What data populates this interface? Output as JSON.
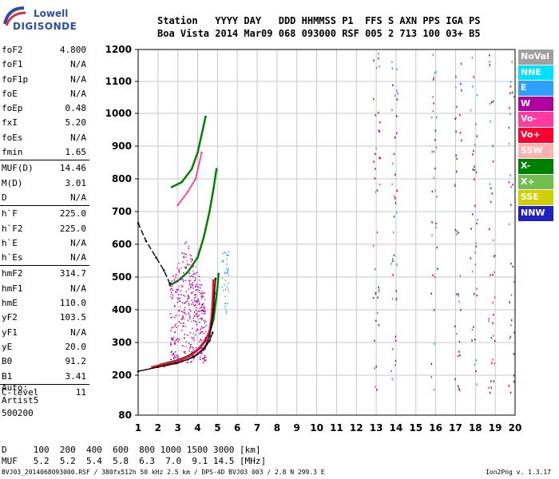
{
  "logo": {
    "line1": "Lowell",
    "line2": "DIGISONDE"
  },
  "header": {
    "line1": "Station   YYYY DAY   DDD HHMMSS P1  FFS S AXN PPS IGA PS",
    "line2": "Boa Vista 2014 Mar09 068 093000 RSF 005 2 713 100 03+ B5"
  },
  "params": [
    {
      "name": "foF2",
      "value": "4.800"
    },
    {
      "name": "foF1",
      "value": "N/A"
    },
    {
      "name": "foF1p",
      "value": "N/A"
    },
    {
      "name": "foE",
      "value": "N/A"
    },
    {
      "name": "foEp",
      "value": "0.48"
    },
    {
      "name": "fxI",
      "value": "5.20"
    },
    {
      "name": "foEs",
      "value": "N/A"
    },
    {
      "name": "fmin",
      "value": "1.65"
    },
    {
      "name": "MUF(D)",
      "value": "14.46"
    },
    {
      "name": "M(D)",
      "value": "3.01"
    },
    {
      "name": "D",
      "value": "N/A"
    },
    {
      "name": "h`F",
      "value": "225.0"
    },
    {
      "name": "h`F2",
      "value": "225.0"
    },
    {
      "name": "h`E",
      "value": "N/A"
    },
    {
      "name": "h`Es",
      "value": "N/A"
    },
    {
      "name": "hmF2",
      "value": "314.7"
    },
    {
      "name": "hmF1",
      "value": "N/A"
    },
    {
      "name": "hmE",
      "value": "110.0"
    },
    {
      "name": "yF2",
      "value": "103.5"
    },
    {
      "name": "yF1",
      "value": "N/A"
    },
    {
      "name": "yE",
      "value": "20.0"
    },
    {
      "name": "B0",
      "value": "91.2"
    },
    {
      "name": "B1",
      "value": "3.41"
    },
    {
      "name": "C-level",
      "value": "11"
    }
  ],
  "auto": {
    "label": "Auto:",
    "artist": "Artist5",
    "version": "500200"
  },
  "dmuf": {
    "d_row": "D     100  200  400  600  800 1000 1500 3000 [km]",
    "muf_row": "MUF   5.2  5.2  5.4  5.8  6.3  7.0  9.1 14.5 [MHz]"
  },
  "footer": {
    "left": "BVJ03_2014068093000.RSF / 380fx512h 50 kHz 2.5 km / DPS-4D BVJ03 003 / 2.8 N 299.3 E",
    "right": "Ion2Png v. 1.3.17"
  },
  "legend": [
    {
      "label": "NoVal",
      "color": "#a0a0a0"
    },
    {
      "label": "NNE",
      "color": "#00e0ff"
    },
    {
      "label": "E",
      "color": "#2ea0ff"
    },
    {
      "label": "W",
      "color": "#b000a0"
    },
    {
      "label": "Vo-",
      "color": "#ff3aa0"
    },
    {
      "label": "Vo+",
      "color": "#ff0030"
    },
    {
      "label": "SSW",
      "color": "#ffb0b0"
    },
    {
      "label": "X-",
      "color": "#008000"
    },
    {
      "label": "X+",
      "color": "#70c050"
    },
    {
      "label": "SSE",
      "color": "#d0d000"
    },
    {
      "label": "NNW",
      "color": "#2020c0"
    }
  ],
  "chart_data": {
    "type": "scatter",
    "xlim": [
      1,
      20
    ],
    "ylim": [
      80,
      1200
    ],
    "x_ticks": [
      1,
      2,
      3,
      4,
      5,
      6,
      7,
      8,
      9,
      10,
      11,
      12,
      13,
      14,
      15,
      16,
      17,
      18,
      19,
      20
    ],
    "y_ticks": [
      80,
      200,
      300,
      400,
      500,
      600,
      700,
      800,
      900,
      1000,
      1100,
      1200
    ],
    "grid": true,
    "traces": [
      {
        "name": "X-",
        "points": [
          [
            2.1,
            232
          ],
          [
            2.5,
            238
          ],
          [
            3.0,
            246
          ],
          [
            3.5,
            258
          ],
          [
            4.0,
            278
          ],
          [
            4.3,
            300
          ],
          [
            4.6,
            330
          ],
          [
            4.8,
            370
          ],
          [
            4.9,
            420
          ],
          [
            5.0,
            470
          ],
          [
            5.05,
            510
          ]
        ]
      },
      {
        "name": "Vo+",
        "points": [
          [
            1.7,
            225
          ],
          [
            2.2,
            232
          ],
          [
            2.7,
            238
          ],
          [
            3.2,
            248
          ],
          [
            3.7,
            262
          ],
          [
            4.1,
            282
          ],
          [
            4.4,
            305
          ],
          [
            4.6,
            335
          ],
          [
            4.7,
            375
          ],
          [
            4.75,
            420
          ],
          [
            4.8,
            490
          ]
        ]
      },
      {
        "name": "X-",
        "points": [
          [
            2.6,
            475
          ],
          [
            3.0,
            488
          ],
          [
            3.5,
            515
          ],
          [
            4.0,
            560
          ],
          [
            4.3,
            620
          ],
          [
            4.6,
            700
          ],
          [
            4.8,
            770
          ],
          [
            4.95,
            830
          ]
        ]
      },
      {
        "name": "X-",
        "points": [
          [
            2.7,
            775
          ],
          [
            3.2,
            790
          ],
          [
            3.7,
            830
          ],
          [
            4.0,
            880
          ],
          [
            4.4,
            990
          ]
        ]
      },
      {
        "name": "Vo-",
        "points": [
          [
            3.0,
            720
          ],
          [
            3.5,
            760
          ],
          [
            3.9,
            800
          ],
          [
            4.2,
            880
          ]
        ]
      },
      {
        "name": "NoVal",
        "points": [
          [
            1.0,
            212
          ],
          [
            2.0,
            225
          ],
          [
            3.0,
            238
          ],
          [
            3.8,
            255
          ],
          [
            4.3,
            278
          ],
          [
            4.6,
            305
          ],
          [
            4.75,
            330
          ]
        ]
      },
      {
        "name": "NoVal",
        "points": [
          [
            2.3,
            228
          ],
          [
            2.9,
            236
          ],
          [
            3.5,
            248
          ],
          [
            4.0,
            265
          ],
          [
            4.4,
            290
          ],
          [
            4.6,
            320
          ],
          [
            4.7,
            355
          ],
          [
            4.8,
            400
          ],
          [
            4.85,
            450
          ],
          [
            4.9,
            495
          ]
        ]
      },
      {
        "name": "NoVal",
        "points": [
          [
            1.0,
            665
          ],
          [
            1.4,
            610
          ],
          [
            1.9,
            560
          ],
          [
            2.3,
            520
          ],
          [
            2.6,
            480
          ]
        ]
      }
    ]
  }
}
